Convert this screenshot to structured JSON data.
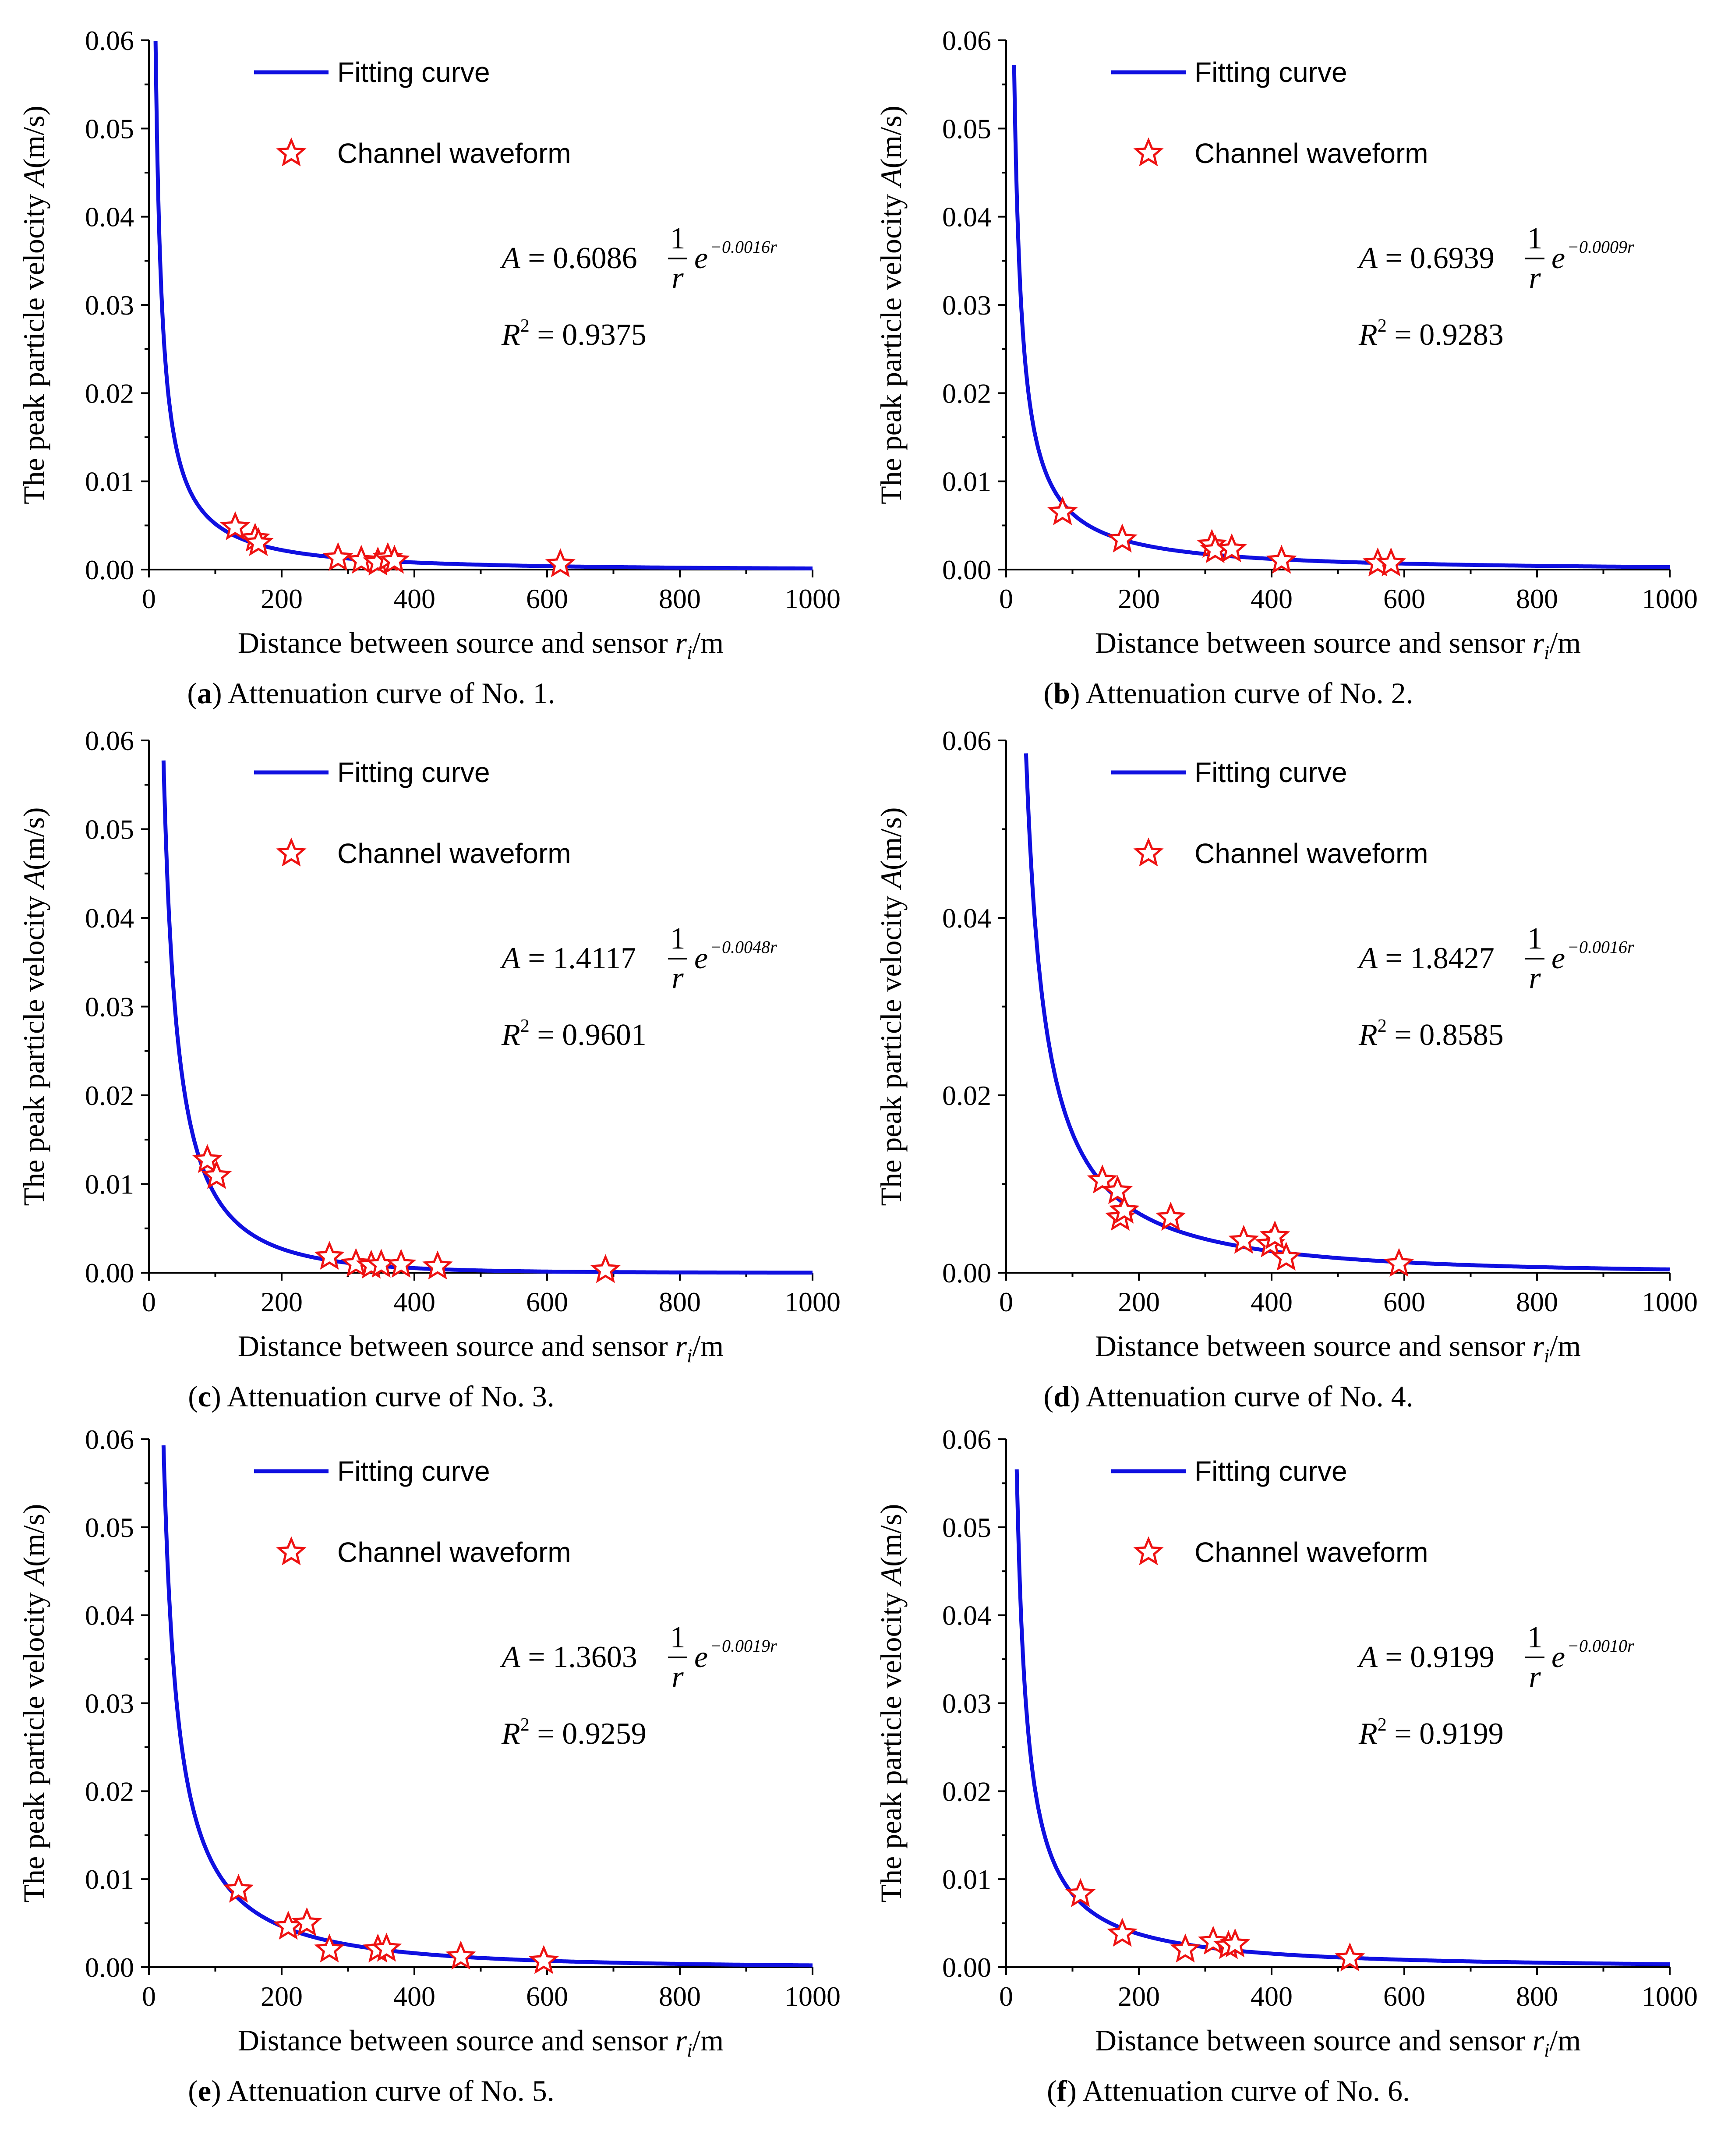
{
  "shared": {
    "xlabel_main": "Distance between source and sensor ",
    "xlabel_var": "r",
    "xlabel_sub": "i",
    "xlabel_unit": "/m",
    "ylabel_main": "The peak particle velocity ",
    "ylabel_var": "A",
    "ylabel_unit": "(m/s)",
    "legend_curve": "Fitting curve",
    "legend_points": "Channel waveform",
    "curve_color": "#1010e0",
    "marker_color": "#ee1111",
    "eq_lhs": "A",
    "eq_eq": "=",
    "eq_num": "1",
    "eq_den": "r",
    "eq_e": "e",
    "r2_label": "R",
    "r2_sup": "2",
    "r2_eq": "="
  },
  "chart_data": [
    {
      "id": "a",
      "type": "line+scatter",
      "caption_letter": "(a)",
      "caption_text": "Attenuation curve of No. 1.",
      "coef": "0.6086",
      "exponent": "−0.0016r",
      "r2": "0.9375",
      "fit": {
        "a": 0.6086,
        "b": 0.0016
      },
      "xlim": [
        0,
        1000
      ],
      "ylim": [
        0,
        0.06
      ],
      "xticks": [
        0,
        200,
        400,
        600,
        800,
        1000
      ],
      "xtick_labels": [
        "0",
        "200",
        "400",
        "600",
        "800",
        "1000"
      ],
      "yticks": [
        0,
        0.01,
        0.02,
        0.03,
        0.04,
        0.05,
        0.06
      ],
      "ytick_labels": [
        "0.00",
        "0.01",
        "0.02",
        "0.03",
        "0.04",
        "0.05",
        "0.06"
      ],
      "points": [
        [
          130,
          0.0048
        ],
        [
          160,
          0.0035
        ],
        [
          165,
          0.003
        ],
        [
          285,
          0.0013
        ],
        [
          320,
          0.001
        ],
        [
          345,
          0.0008
        ],
        [
          360,
          0.0013
        ],
        [
          370,
          0.001
        ],
        [
          620,
          0.0006
        ]
      ]
    },
    {
      "id": "b",
      "type": "line+scatter",
      "caption_letter": "(b)",
      "caption_text": "Attenuation curve of No. 2.",
      "coef": "0.6939",
      "exponent": "−0.0009r",
      "r2": "0.9283",
      "fit": {
        "a": 0.6939,
        "b": 0.0009
      },
      "xlim": [
        0,
        1000
      ],
      "ylim": [
        0,
        0.06
      ],
      "xticks": [
        0,
        200,
        400,
        600,
        800,
        1000
      ],
      "xtick_labels": [
        "0",
        "200",
        "400",
        "600",
        "800",
        "1000"
      ],
      "yticks": [
        0,
        0.01,
        0.02,
        0.03,
        0.04,
        0.05,
        0.06
      ],
      "ytick_labels": [
        "0.00",
        "0.01",
        "0.02",
        "0.03",
        "0.04",
        "0.05",
        "0.06"
      ],
      "points": [
        [
          85,
          0.0065
        ],
        [
          175,
          0.0034
        ],
        [
          310,
          0.0028
        ],
        [
          315,
          0.0022
        ],
        [
          340,
          0.0023
        ],
        [
          415,
          0.001
        ],
        [
          560,
          0.0007
        ],
        [
          580,
          0.0007
        ]
      ]
    },
    {
      "id": "c",
      "type": "line+scatter",
      "caption_letter": "(c)",
      "caption_text": "Attenuation curve of No. 3.",
      "coef": "1.4117",
      "exponent": "−0.0048r",
      "r2": "0.9601",
      "fit": {
        "a": 1.4117,
        "b": 0.0048
      },
      "xlim": [
        0,
        1000
      ],
      "ylim": [
        0,
        0.06
      ],
      "xticks": [
        0,
        200,
        400,
        600,
        800,
        1000
      ],
      "xtick_labels": [
        "0",
        "200",
        "400",
        "600",
        "800",
        "1000"
      ],
      "yticks": [
        0,
        0.01,
        0.02,
        0.03,
        0.04,
        0.05,
        0.06
      ],
      "ytick_labels": [
        "0.00",
        "0.01",
        "0.02",
        "0.03",
        "0.04",
        "0.05",
        "0.06"
      ],
      "points": [
        [
          88,
          0.0127
        ],
        [
          102,
          0.0109
        ],
        [
          272,
          0.0018
        ],
        [
          312,
          0.001
        ],
        [
          335,
          0.0008
        ],
        [
          350,
          0.0009
        ],
        [
          380,
          0.0009
        ],
        [
          435,
          0.0007
        ],
        [
          688,
          0.0003
        ]
      ]
    },
    {
      "id": "d",
      "type": "line+scatter",
      "caption_letter": "(d)",
      "caption_text": "Attenuation curve of No. 4.",
      "coef": "1.8427",
      "exponent": "−0.0016r",
      "r2": "0.8585",
      "fit": {
        "a": 1.8427,
        "b": 0.0016
      },
      "xlim": [
        0,
        1000
      ],
      "ylim": [
        0,
        0.06
      ],
      "xticks": [
        0,
        200,
        400,
        600,
        800,
        1000
      ],
      "xtick_labels": [
        "0",
        "200",
        "400",
        "600",
        "800",
        "1000"
      ],
      "yticks": [
        0,
        0.02,
        0.04,
        0.06
      ],
      "ytick_labels": [
        "0.00",
        "0.02",
        "0.04",
        "0.06"
      ],
      "points": [
        [
          145,
          0.0104
        ],
        [
          168,
          0.0092
        ],
        [
          172,
          0.0062
        ],
        [
          178,
          0.007
        ],
        [
          248,
          0.0062
        ],
        [
          358,
          0.0036
        ],
        [
          398,
          0.0032
        ],
        [
          405,
          0.0041
        ],
        [
          422,
          0.0017
        ],
        [
          592,
          0.001
        ]
      ]
    },
    {
      "id": "e",
      "type": "line+scatter",
      "caption_letter": "(e)",
      "caption_text": "Attenuation curve of No. 5.",
      "coef": "1.3603",
      "exponent": "−0.0019r",
      "r2": "0.9259",
      "fit": {
        "a": 1.3603,
        "b": 0.0019
      },
      "xlim": [
        0,
        1000
      ],
      "ylim": [
        0,
        0.06
      ],
      "xticks": [
        0,
        200,
        400,
        600,
        800,
        1000
      ],
      "xtick_labels": [
        "0",
        "200",
        "400",
        "600",
        "800",
        "1000"
      ],
      "yticks": [
        0,
        0.01,
        0.02,
        0.03,
        0.04,
        0.05,
        0.06
      ],
      "ytick_labels": [
        "0.00",
        "0.01",
        "0.02",
        "0.03",
        "0.04",
        "0.05",
        "0.06"
      ],
      "points": [
        [
          135,
          0.0088
        ],
        [
          210,
          0.0046
        ],
        [
          238,
          0.005
        ],
        [
          272,
          0.002
        ],
        [
          345,
          0.002
        ],
        [
          358,
          0.0021
        ],
        [
          470,
          0.0012
        ],
        [
          595,
          0.0007
        ]
      ]
    },
    {
      "id": "f",
      "type": "line+scatter",
      "caption_letter": "(f)",
      "caption_text": "Attenuation curve of No. 6.",
      "coef": "0.9199",
      "exponent": "−0.0010r",
      "r2": "0.9199",
      "fit": {
        "a": 0.9199,
        "b": 0.001
      },
      "xlim": [
        0,
        1000
      ],
      "ylim": [
        0,
        0.06
      ],
      "xticks": [
        0,
        200,
        400,
        600,
        800,
        1000
      ],
      "xtick_labels": [
        "0",
        "200",
        "400",
        "600",
        "800",
        "1000"
      ],
      "yticks": [
        0,
        0.01,
        0.02,
        0.03,
        0.04,
        0.05,
        0.06
      ],
      "ytick_labels": [
        "0.00",
        "0.01",
        "0.02",
        "0.03",
        "0.04",
        "0.05",
        "0.06"
      ],
      "points": [
        [
          112,
          0.0083
        ],
        [
          175,
          0.0038
        ],
        [
          270,
          0.002
        ],
        [
          312,
          0.0029
        ],
        [
          335,
          0.0024
        ],
        [
          345,
          0.0026
        ],
        [
          518,
          0.001
        ]
      ]
    }
  ]
}
